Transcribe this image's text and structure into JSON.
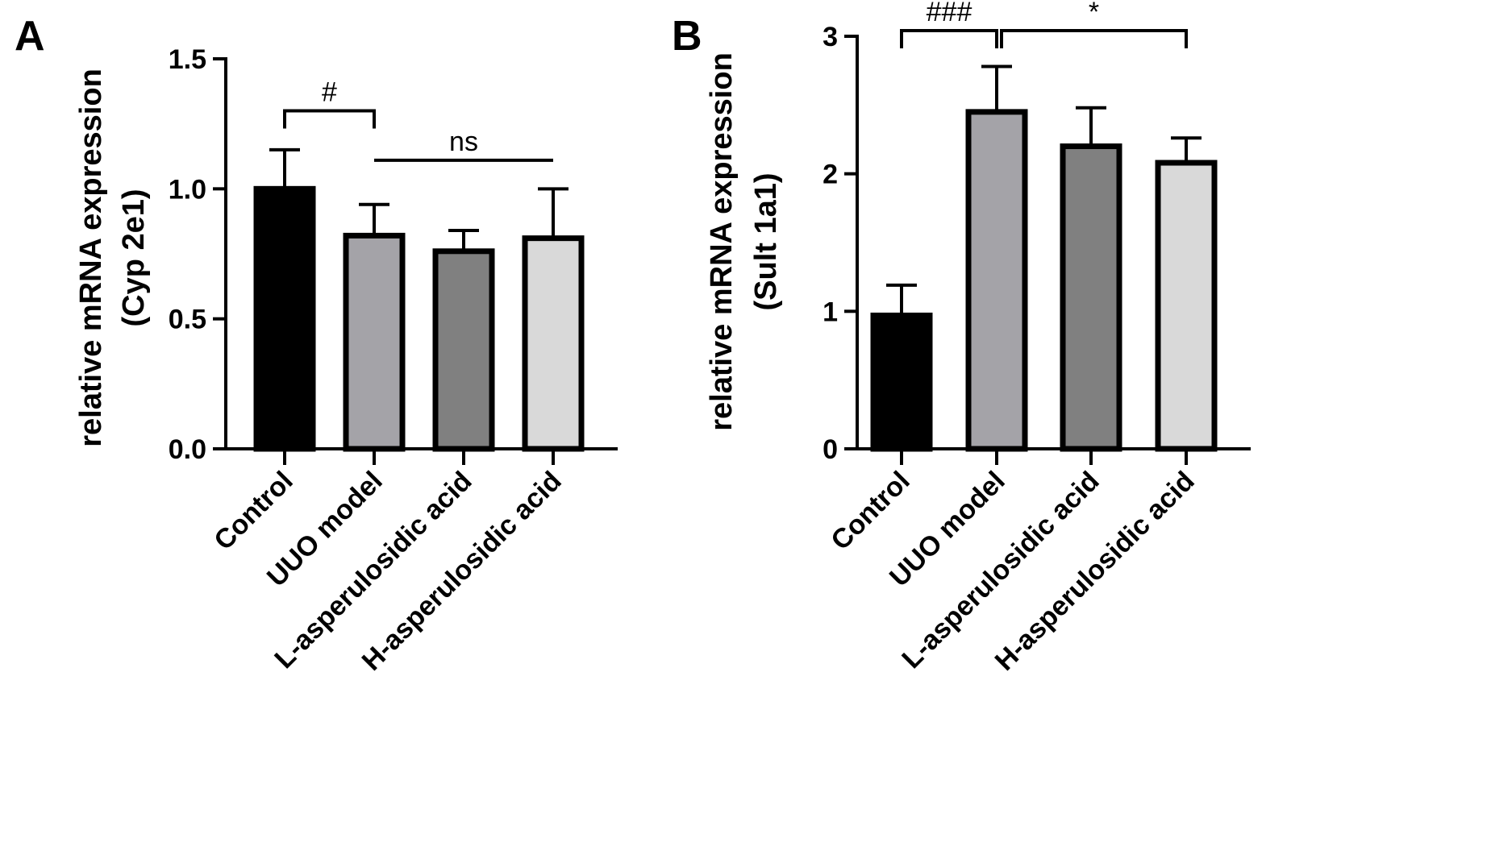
{
  "chart_data": [
    {
      "type": "bar",
      "panel_letter": "A",
      "ylabel_line1": "relative mRNA expression",
      "ylabel_line2": "(Cyp 2e1)",
      "ylim": [
        0,
        1.5
      ],
      "yticks": [
        "0.0",
        "0.5",
        "1.0",
        "1.5"
      ],
      "categories": [
        "Control",
        "UUO model",
        "L-asperulosidic acid",
        "H-asperulosidic acid"
      ],
      "values": [
        1.0,
        0.82,
        0.76,
        0.81
      ],
      "errors": [
        0.15,
        0.12,
        0.08,
        0.19
      ],
      "colors": [
        "#000000",
        "#a4a3a8",
        "#808080",
        "#d9d9d9"
      ],
      "annotations": [
        {
          "label": "#",
          "from": 0,
          "to": 1,
          "type": "bracket",
          "level": 1.3
        },
        {
          "label": "ns",
          "from": 1,
          "to": 3,
          "type": "line",
          "level": 1.11
        }
      ]
    },
    {
      "type": "bar",
      "panel_letter": "B",
      "ylabel_line1": "relative mRNA expression",
      "ylabel_line2": "(Sult 1a1)",
      "ylim": [
        0,
        3
      ],
      "yticks": [
        "0",
        "1",
        "2",
        "3"
      ],
      "categories": [
        "Control",
        "UUO model",
        "L-asperulosidic acid",
        "H-asperulosidic acid"
      ],
      "values": [
        0.97,
        2.45,
        2.2,
        2.08
      ],
      "errors": [
        0.22,
        0.33,
        0.28,
        0.18
      ],
      "colors": [
        "#000000",
        "#a4a3a8",
        "#808080",
        "#d9d9d9"
      ],
      "annotations": [
        {
          "label": "###",
          "from": 0,
          "to": 1,
          "type": "bracket",
          "level": 3.0
        },
        {
          "label": "*",
          "from": 1,
          "to": 3,
          "type": "bracket",
          "level": 3.0
        }
      ]
    }
  ]
}
